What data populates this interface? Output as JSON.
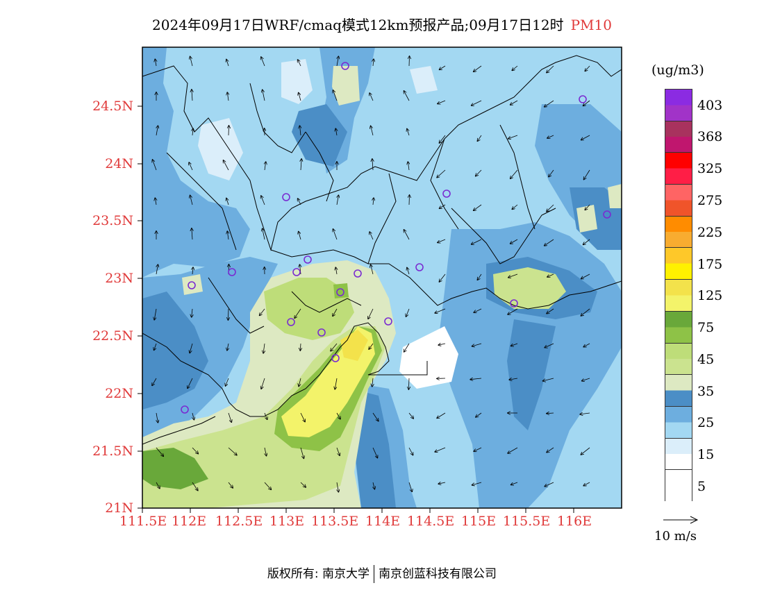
{
  "title": {
    "main": "2024年09月17日WRF/cmaq模式12km预报产品;09月17日12时",
    "pollutant": "PM10"
  },
  "map": {
    "lat_labels": [
      "24.5N",
      "24N",
      "23.5N",
      "23N",
      "22.5N",
      "22N",
      "21.5N",
      "21N"
    ],
    "lon_labels": [
      "111.5E",
      "112E",
      "112.5E",
      "113E",
      "113.5E",
      "114E",
      "114.5E",
      "115E",
      "115.5E",
      "116E"
    ],
    "lat_range": [
      21.0,
      25.0
    ],
    "lon_range": [
      111.5,
      116.5
    ],
    "station_marker": "circle"
  },
  "legend": {
    "unit": "(ug/m3)",
    "labels": [
      "403",
      "368",
      "325",
      "275",
      "225",
      "175",
      "125",
      "75",
      "45",
      "35",
      "25",
      "15",
      "5"
    ],
    "colors": [
      "#8b2be2",
      "#a133c8",
      "#a8325e",
      "#c0166e",
      "#ff0000",
      "#ff1e46",
      "#ff6464",
      "#f0542a",
      "#ff8c00",
      "#f8ac30",
      "#fec829",
      "#fff100",
      "#f3e24b",
      "#f3f36a",
      "#69a83a",
      "#8ec247",
      "#bedd79",
      "#cbe38f",
      "#dde9c2",
      "#4b8ec6",
      "#6daedf",
      "#a3d8f2",
      "#dbeefa",
      "#ffffff"
    ]
  },
  "wind": {
    "label": "10 m/s"
  },
  "footer": {
    "left": "版权所有: 南京大学",
    "right": "南京创蓝科技有限公司"
  }
}
